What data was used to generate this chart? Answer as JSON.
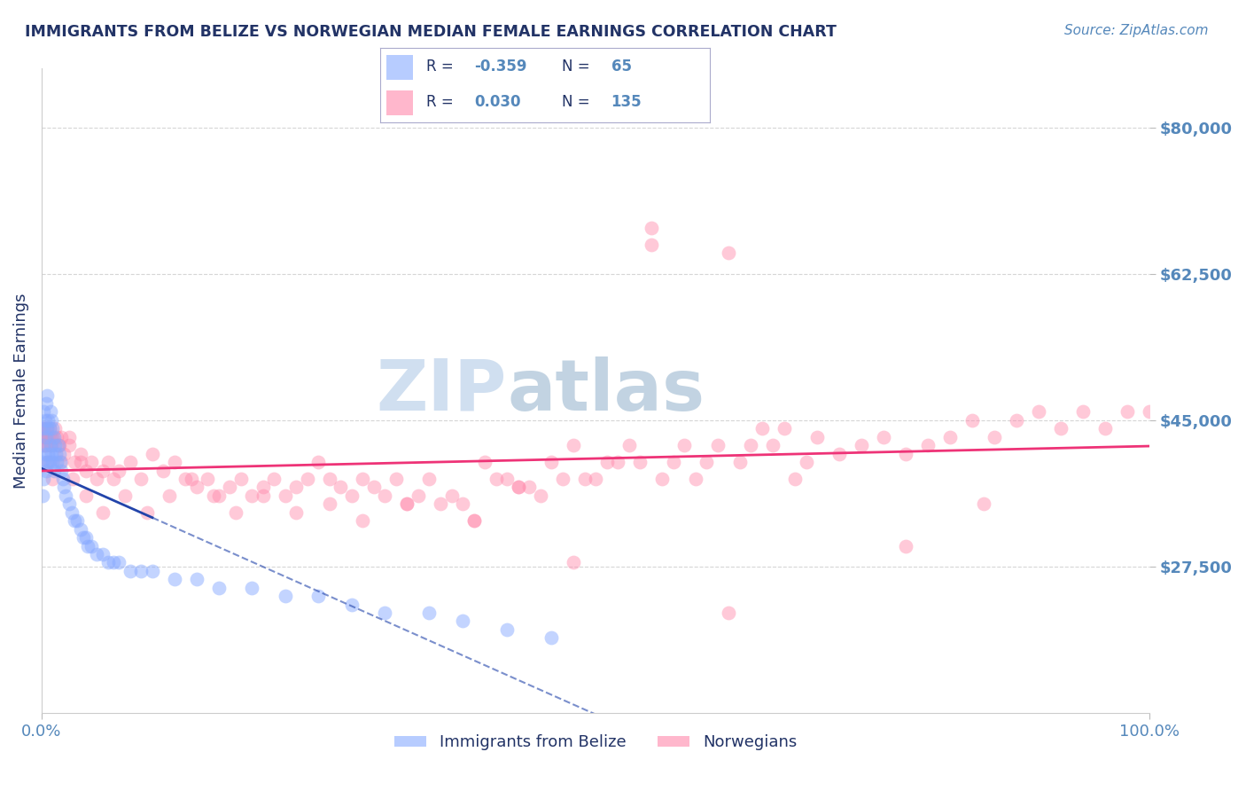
{
  "title": "IMMIGRANTS FROM BELIZE VS NORWEGIAN MEDIAN FEMALE EARNINGS CORRELATION CHART",
  "source_text": "Source: ZipAtlas.com",
  "ylabel": "Median Female Earnings",
  "xlim": [
    0.0,
    1.0
  ],
  "ylim": [
    10000,
    87000
  ],
  "yticks": [
    27500,
    45000,
    62500,
    80000
  ],
  "ytick_labels": [
    "$27,500",
    "$45,000",
    "$62,500",
    "$80,000"
  ],
  "xticks": [
    0.0,
    1.0
  ],
  "xtick_labels": [
    "0.0%",
    "100.0%"
  ],
  "blue_color": "#88aaff",
  "pink_color": "#ff88aa",
  "blue_line_color": "#2244aa",
  "pink_line_color": "#ee3377",
  "title_color": "#223366",
  "axis_color": "#5588bb",
  "watermark_color": "#d0dff0",
  "background_color": "#ffffff",
  "blue_scatter_x": [
    0.001,
    0.001,
    0.001,
    0.002,
    0.002,
    0.002,
    0.003,
    0.003,
    0.004,
    0.004,
    0.004,
    0.005,
    0.005,
    0.005,
    0.006,
    0.006,
    0.007,
    0.007,
    0.008,
    0.008,
    0.009,
    0.009,
    0.01,
    0.01,
    0.011,
    0.011,
    0.012,
    0.013,
    0.014,
    0.015,
    0.016,
    0.017,
    0.018,
    0.019,
    0.02,
    0.022,
    0.025,
    0.027,
    0.03,
    0.032,
    0.035,
    0.038,
    0.04,
    0.042,
    0.045,
    0.05,
    0.055,
    0.06,
    0.065,
    0.07,
    0.08,
    0.09,
    0.1,
    0.12,
    0.14,
    0.16,
    0.19,
    0.22,
    0.25,
    0.28,
    0.31,
    0.35,
    0.38,
    0.42,
    0.46
  ],
  "blue_scatter_y": [
    44000,
    40000,
    36000,
    46000,
    42000,
    38000,
    45000,
    41000,
    47000,
    43000,
    39000,
    48000,
    44000,
    40000,
    45000,
    41000,
    44000,
    40000,
    46000,
    42000,
    45000,
    41000,
    44000,
    40000,
    43000,
    39000,
    42000,
    41000,
    40000,
    42000,
    41000,
    40000,
    39000,
    38000,
    37000,
    36000,
    35000,
    34000,
    33000,
    33000,
    32000,
    31000,
    31000,
    30000,
    30000,
    29000,
    29000,
    28000,
    28000,
    28000,
    27000,
    27000,
    27000,
    26000,
    26000,
    25000,
    25000,
    24000,
    24000,
    23000,
    22000,
    22000,
    21000,
    20000,
    19000
  ],
  "pink_scatter_x": [
    0.001,
    0.002,
    0.003,
    0.004,
    0.005,
    0.006,
    0.007,
    0.008,
    0.009,
    0.01,
    0.012,
    0.014,
    0.016,
    0.018,
    0.02,
    0.025,
    0.03,
    0.035,
    0.04,
    0.045,
    0.05,
    0.055,
    0.06,
    0.065,
    0.07,
    0.08,
    0.09,
    0.1,
    0.11,
    0.12,
    0.13,
    0.14,
    0.15,
    0.16,
    0.17,
    0.18,
    0.19,
    0.2,
    0.21,
    0.22,
    0.23,
    0.24,
    0.25,
    0.26,
    0.27,
    0.28,
    0.29,
    0.3,
    0.31,
    0.32,
    0.33,
    0.34,
    0.35,
    0.36,
    0.37,
    0.38,
    0.39,
    0.4,
    0.41,
    0.42,
    0.43,
    0.44,
    0.45,
    0.46,
    0.47,
    0.48,
    0.49,
    0.5,
    0.51,
    0.52,
    0.53,
    0.54,
    0.55,
    0.56,
    0.57,
    0.58,
    0.59,
    0.6,
    0.61,
    0.62,
    0.63,
    0.64,
    0.65,
    0.66,
    0.67,
    0.68,
    0.69,
    0.7,
    0.72,
    0.74,
    0.76,
    0.78,
    0.8,
    0.82,
    0.84,
    0.86,
    0.88,
    0.9,
    0.92,
    0.94,
    0.96,
    0.98,
    1.0,
    0.55,
    0.43,
    0.39,
    0.33,
    0.29,
    0.26,
    0.23,
    0.2,
    0.175,
    0.155,
    0.135,
    0.115,
    0.095,
    0.075,
    0.055,
    0.04,
    0.028,
    0.018,
    0.01,
    0.006,
    0.003,
    0.001,
    0.002,
    0.003,
    0.004,
    0.005,
    0.008,
    0.015,
    0.025,
    0.035,
    0.48,
    0.62,
    0.78,
    0.85
  ],
  "pink_scatter_y": [
    43000,
    44000,
    43000,
    42000,
    44000,
    43000,
    44000,
    43000,
    42000,
    43000,
    44000,
    43000,
    42000,
    43000,
    41000,
    42000,
    40000,
    41000,
    39000,
    40000,
    38000,
    39000,
    40000,
    38000,
    39000,
    40000,
    38000,
    41000,
    39000,
    40000,
    38000,
    37000,
    38000,
    36000,
    37000,
    38000,
    36000,
    37000,
    38000,
    36000,
    37000,
    38000,
    40000,
    38000,
    37000,
    36000,
    38000,
    37000,
    36000,
    38000,
    35000,
    36000,
    38000,
    35000,
    36000,
    35000,
    33000,
    40000,
    38000,
    38000,
    37000,
    37000,
    36000,
    40000,
    38000,
    42000,
    38000,
    38000,
    40000,
    40000,
    42000,
    40000,
    68000,
    38000,
    40000,
    42000,
    38000,
    40000,
    42000,
    65000,
    40000,
    42000,
    44000,
    42000,
    44000,
    38000,
    40000,
    43000,
    41000,
    42000,
    43000,
    41000,
    42000,
    43000,
    45000,
    43000,
    45000,
    46000,
    44000,
    46000,
    44000,
    46000,
    46000,
    66000,
    37000,
    33000,
    35000,
    33000,
    35000,
    34000,
    36000,
    34000,
    36000,
    38000,
    36000,
    34000,
    36000,
    34000,
    36000,
    38000,
    40000,
    38000,
    40000,
    42000,
    44000,
    42000,
    43000,
    44000,
    43000,
    42000,
    42000,
    43000,
    40000,
    28000,
    22000,
    30000,
    35000
  ]
}
